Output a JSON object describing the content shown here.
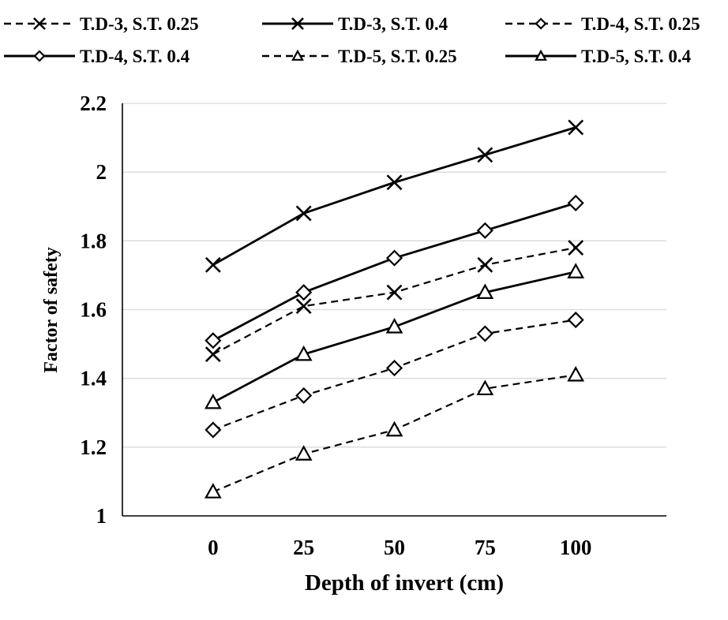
{
  "chart_data": {
    "type": "line",
    "title": "",
    "xlabel": "Depth of invert (cm)",
    "ylabel": "Factor of safety",
    "x": [
      0,
      25,
      50,
      75,
      100
    ],
    "xlim": [
      -25,
      125
    ],
    "ylim": [
      1,
      2.2
    ],
    "yticks": [
      1,
      1.2,
      1.4,
      1.6,
      1.8,
      2,
      2.2
    ],
    "ytick_labels": [
      "1",
      "1.2",
      "1.4",
      "1.6",
      "1.8",
      "2",
      "2.2"
    ],
    "xtick_labels": [
      "0",
      "25",
      "50",
      "75",
      "100"
    ],
    "grid": "horizontal",
    "legend_position": "top",
    "series": [
      {
        "name": "T.D-3, S.T. 0.25",
        "marker": "x",
        "dash": "dashed",
        "values": [
          1.47,
          1.61,
          1.65,
          1.73,
          1.78
        ]
      },
      {
        "name": "T.D-3, S.T. 0.4",
        "marker": "x",
        "dash": "solid",
        "values": [
          1.73,
          1.88,
          1.97,
          2.05,
          2.13
        ]
      },
      {
        "name": "T.D-4, S.T. 0.25",
        "marker": "diamond",
        "dash": "dashed",
        "values": [
          1.25,
          1.35,
          1.43,
          1.53,
          1.57
        ]
      },
      {
        "name": "T.D-4, S.T. 0.4",
        "marker": "diamond",
        "dash": "solid",
        "values": [
          1.51,
          1.65,
          1.75,
          1.83,
          1.91
        ]
      },
      {
        "name": "T.D-5, S.T. 0.25",
        "marker": "triangle",
        "dash": "dashed",
        "values": [
          1.07,
          1.18,
          1.25,
          1.37,
          1.41
        ]
      },
      {
        "name": "T.D-5, S.T. 0.4",
        "marker": "triangle",
        "dash": "solid",
        "values": [
          1.33,
          1.47,
          1.55,
          1.65,
          1.71
        ]
      }
    ],
    "colors": {
      "line": "#000000",
      "grid": "#d9d9d9",
      "marker_fill": "#ffffff"
    }
  }
}
